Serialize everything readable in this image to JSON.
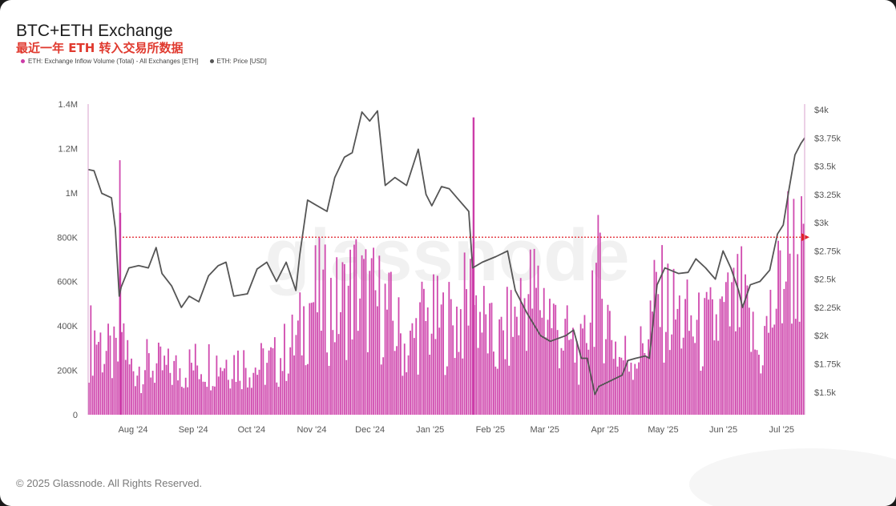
{
  "title": "BTC+ETH Exchange",
  "subtitle": "最近一年 ETH 转入交易所数据",
  "footer": "© 2025 Glassnode. All Rights Reserved.",
  "watermark": "glassnode",
  "legend": [
    {
      "label": "ETH: Exchange Inflow Volume (Total) - All Exchanges [ETH]",
      "color": "#cc3ca8"
    },
    {
      "label": "ETH: Price [USD]",
      "color": "#555555"
    }
  ],
  "colors": {
    "bar": "#cc3ca8",
    "price": "#555555",
    "reference": "#e0202a"
  },
  "chart_data": {
    "type": "bar",
    "x_range": [
      "2024-07-20",
      "2025-07-24"
    ],
    "y_left": {
      "ticks": [
        "0",
        "200K",
        "400K",
        "600K",
        "800K",
        "1M",
        "1.2M",
        "1.4M"
      ],
      "lim": [
        0,
        1400000
      ]
    },
    "y_right": {
      "ticks": [
        "$1.5k",
        "$1.75k",
        "$2k",
        "$2.25k",
        "$2.5k",
        "$2.75k",
        "$3k",
        "$3.25k",
        "$3.5k",
        "$3.75k",
        "$4k"
      ],
      "lim": [
        1300,
        4050
      ]
    },
    "x_ticks": [
      "Aug '24",
      "Sep '24",
      "Oct '24",
      "Nov '24",
      "Dec '24",
      "Jan '25",
      "Feb '25",
      "Mar '25",
      "Apr '25",
      "May '25",
      "Jun '25",
      "Jul '25"
    ],
    "reference_line": {
      "y": 800000
    },
    "series": [
      {
        "name": "ETH: Exchange Inflow Volume (Total) - All Exchanges [ETH]",
        "type": "bar",
        "anchors": [
          [
            "2024-07-20",
            380000
          ],
          [
            "2024-07-24",
            430000
          ],
          [
            "2024-07-28",
            330000
          ],
          [
            "2024-08-01",
            300000
          ],
          [
            "2024-08-04",
            300000
          ],
          [
            "2024-08-05",
            910000
          ],
          [
            "2024-08-06",
            470000
          ],
          [
            "2024-08-10",
            250000
          ],
          [
            "2024-08-20",
            260000
          ],
          [
            "2024-09-01",
            230000
          ],
          [
            "2024-09-15",
            270000
          ],
          [
            "2024-10-01",
            290000
          ],
          [
            "2024-10-15",
            250000
          ],
          [
            "2024-10-25",
            280000
          ],
          [
            "2024-11-05",
            400000
          ],
          [
            "2024-11-12",
            620000
          ],
          [
            "2024-11-25",
            560000
          ],
          [
            "2024-12-05",
            680000
          ],
          [
            "2024-12-10",
            620000
          ],
          [
            "2024-12-20",
            560000
          ],
          [
            "2025-01-01",
            330000
          ],
          [
            "2025-01-08",
            500000
          ],
          [
            "2025-01-20",
            470000
          ],
          [
            "2025-01-28",
            520000
          ],
          [
            "2025-02-02",
            620000
          ],
          [
            "2025-02-03",
            1340000
          ],
          [
            "2025-02-04",
            600000
          ],
          [
            "2025-02-15",
            340000
          ],
          [
            "2025-02-25",
            500000
          ],
          [
            "2025-03-03",
            640000
          ],
          [
            "2025-03-11",
            620000
          ],
          [
            "2025-03-20",
            430000
          ],
          [
            "2025-04-01",
            300000
          ],
          [
            "2025-04-07",
            750000
          ],
          [
            "2025-04-09",
            690000
          ],
          [
            "2025-04-20",
            300000
          ],
          [
            "2025-05-01",
            330000
          ],
          [
            "2025-05-09",
            600000
          ],
          [
            "2025-05-15",
            560000
          ],
          [
            "2025-06-01",
            420000
          ],
          [
            "2025-06-12",
            500000
          ],
          [
            "2025-06-22",
            580000
          ],
          [
            "2025-07-01",
            300000
          ],
          [
            "2025-07-10",
            600000
          ],
          [
            "2025-07-16",
            850000
          ],
          [
            "2025-07-20",
            860000
          ],
          [
            "2025-07-24",
            780000
          ]
        ]
      },
      {
        "name": "ETH: Price [USD]",
        "type": "line",
        "points": [
          [
            "2024-07-20",
            3470
          ],
          [
            "2024-07-23",
            3460
          ],
          [
            "2024-07-27",
            3260
          ],
          [
            "2024-08-01",
            3220
          ],
          [
            "2024-08-03",
            2950
          ],
          [
            "2024-08-05",
            2350
          ],
          [
            "2024-08-06",
            2430
          ],
          [
            "2024-08-10",
            2600
          ],
          [
            "2024-08-15",
            2620
          ],
          [
            "2024-08-20",
            2600
          ],
          [
            "2024-08-24",
            2780
          ],
          [
            "2024-08-27",
            2550
          ],
          [
            "2024-09-01",
            2440
          ],
          [
            "2024-09-06",
            2250
          ],
          [
            "2024-09-10",
            2350
          ],
          [
            "2024-09-15",
            2300
          ],
          [
            "2024-09-20",
            2530
          ],
          [
            "2024-09-25",
            2620
          ],
          [
            "2024-09-29",
            2650
          ],
          [
            "2024-10-03",
            2350
          ],
          [
            "2024-10-10",
            2370
          ],
          [
            "2024-10-15",
            2590
          ],
          [
            "2024-10-20",
            2650
          ],
          [
            "2024-10-25",
            2480
          ],
          [
            "2024-10-30",
            2650
          ],
          [
            "2024-11-04",
            2400
          ],
          [
            "2024-11-06",
            2720
          ],
          [
            "2024-11-10",
            3200
          ],
          [
            "2024-11-13",
            3170
          ],
          [
            "2024-11-20",
            3100
          ],
          [
            "2024-11-24",
            3400
          ],
          [
            "2024-11-29",
            3580
          ],
          [
            "2024-12-03",
            3620
          ],
          [
            "2024-12-08",
            3980
          ],
          [
            "2024-12-12",
            3900
          ],
          [
            "2024-12-16",
            3990
          ],
          [
            "2024-12-20",
            3330
          ],
          [
            "2024-12-25",
            3400
          ],
          [
            "2024-12-31",
            3330
          ],
          [
            "2025-01-06",
            3650
          ],
          [
            "2025-01-10",
            3250
          ],
          [
            "2025-01-13",
            3150
          ],
          [
            "2025-01-18",
            3320
          ],
          [
            "2025-01-22",
            3300
          ],
          [
            "2025-01-27",
            3200
          ],
          [
            "2025-02-01",
            3100
          ],
          [
            "2025-02-03",
            2600
          ],
          [
            "2025-02-08",
            2650
          ],
          [
            "2025-02-15",
            2700
          ],
          [
            "2025-02-21",
            2750
          ],
          [
            "2025-02-25",
            2400
          ],
          [
            "2025-03-03",
            2200
          ],
          [
            "2025-03-10",
            2000
          ],
          [
            "2025-03-15",
            1950
          ],
          [
            "2025-03-23",
            2000
          ],
          [
            "2025-03-27",
            2050
          ],
          [
            "2025-03-31",
            1800
          ],
          [
            "2025-04-03",
            1800
          ],
          [
            "2025-04-07",
            1480
          ],
          [
            "2025-04-09",
            1550
          ],
          [
            "2025-04-15",
            1600
          ],
          [
            "2025-04-21",
            1650
          ],
          [
            "2025-04-24",
            1780
          ],
          [
            "2025-04-28",
            1800
          ],
          [
            "2025-05-03",
            1820
          ],
          [
            "2025-05-05",
            1800
          ],
          [
            "2025-05-09",
            2450
          ],
          [
            "2025-05-13",
            2600
          ],
          [
            "2025-05-20",
            2550
          ],
          [
            "2025-05-25",
            2560
          ],
          [
            "2025-05-29",
            2680
          ],
          [
            "2025-06-03",
            2600
          ],
          [
            "2025-06-08",
            2500
          ],
          [
            "2025-06-12",
            2750
          ],
          [
            "2025-06-16",
            2600
          ],
          [
            "2025-06-20",
            2400
          ],
          [
            "2025-06-22",
            2250
          ],
          [
            "2025-06-26",
            2450
          ],
          [
            "2025-07-01",
            2480
          ],
          [
            "2025-07-06",
            2580
          ],
          [
            "2025-07-10",
            2900
          ],
          [
            "2025-07-13",
            2980
          ],
          [
            "2025-07-16",
            3300
          ],
          [
            "2025-07-19",
            3600
          ],
          [
            "2025-07-22",
            3700
          ],
          [
            "2025-07-24",
            3750
          ]
        ]
      }
    ]
  }
}
